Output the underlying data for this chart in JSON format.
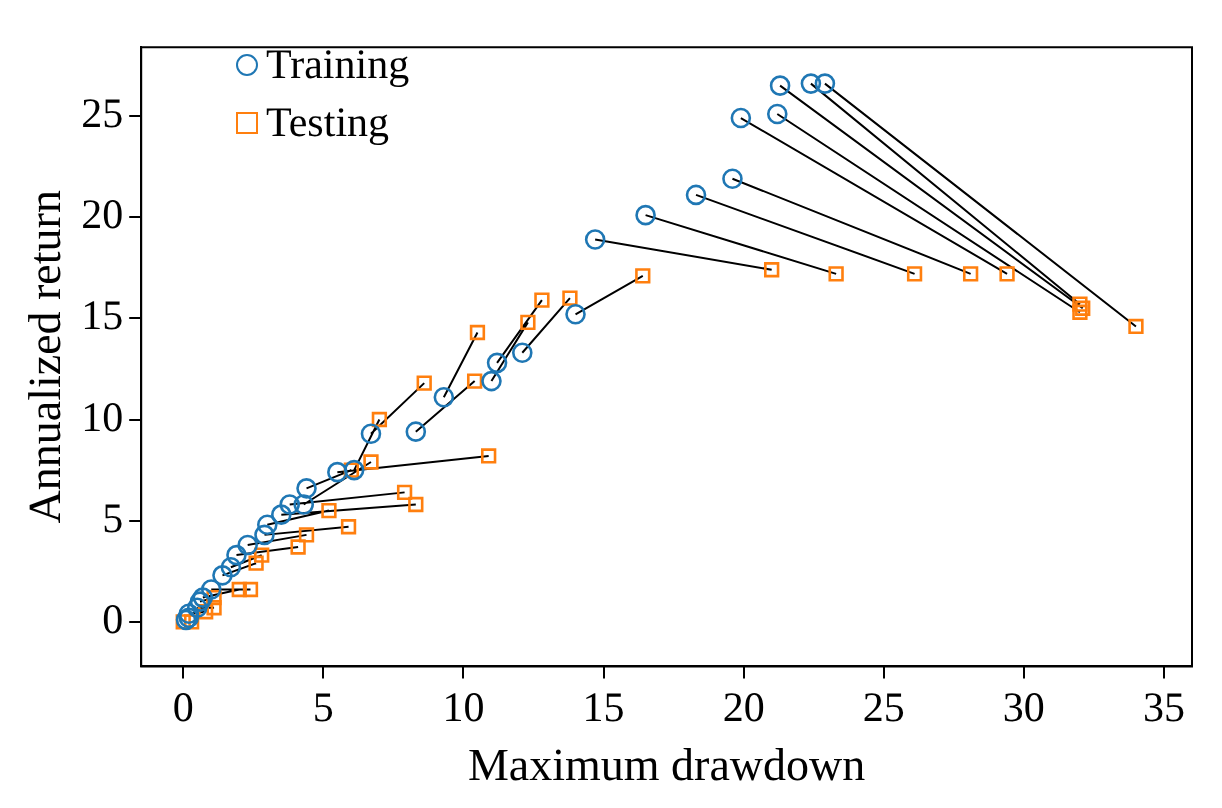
{
  "chart_data": {
    "type": "scatter",
    "xlabel": "Maximum drawdown",
    "ylabel": "Annualized return",
    "xlim": [
      -1.5,
      36
    ],
    "ylim": [
      -2.2,
      28.4
    ],
    "xticks": [
      0,
      5,
      10,
      15,
      20,
      25,
      30,
      35
    ],
    "yticks": [
      0,
      5,
      10,
      15,
      20,
      25
    ],
    "grid": false,
    "legend": "top left",
    "series": [
      {
        "name": "Training",
        "type": "scatter",
        "marker": "circle",
        "color": "#1f77b4",
        "x": [
          22.9,
          22.4,
          21.3,
          21.2,
          19.9,
          19.6,
          18.3,
          16.5,
          14.7,
          14.0,
          12.1,
          11.2,
          11.0,
          9.3,
          8.3,
          6.7,
          6.1,
          5.5,
          4.4,
          4.3,
          3.8,
          3.5,
          3.0,
          2.9,
          2.3,
          1.9,
          1.7,
          1.4,
          1.0,
          0.7,
          0.6,
          0.5,
          0.2,
          0.1,
          0.2
        ],
        "values": [
          26.6,
          26.6,
          26.5,
          25.1,
          24.9,
          21.9,
          21.1,
          20.1,
          18.9,
          15.2,
          13.3,
          12.8,
          11.9,
          11.1,
          9.4,
          9.3,
          7.5,
          7.4,
          6.6,
          5.8,
          5.8,
          5.3,
          4.8,
          4.3,
          3.8,
          3.3,
          2.7,
          2.3,
          1.6,
          1.2,
          1.0,
          0.7,
          0.4,
          0.1,
          0.2
        ]
      },
      {
        "name": "Testing",
        "type": "scatter",
        "marker": "square",
        "color": "#ff7f0e",
        "x": [
          34.0,
          32.0,
          32.1,
          32.0,
          29.4,
          28.1,
          26.1,
          23.3,
          21.0,
          16.4,
          13.8,
          12.8,
          12.3,
          10.5,
          10.4,
          8.6,
          7.0,
          10.9,
          6.0,
          6.7,
          7.9,
          8.3,
          5.2,
          5.9,
          4.4,
          4.1,
          2.8,
          2.6,
          2.4,
          2.0,
          1.1,
          1.1,
          0.8,
          0.0,
          0.3
        ],
        "values": [
          14.6,
          15.7,
          15.5,
          15.3,
          17.2,
          17.2,
          17.2,
          17.2,
          17.4,
          17.1,
          16.0,
          15.9,
          14.8,
          14.3,
          11.9,
          11.8,
          10.0,
          8.2,
          7.5,
          7.9,
          6.4,
          5.8,
          5.5,
          4.7,
          4.3,
          3.7,
          3.3,
          2.9,
          1.6,
          1.6,
          0.7,
          1.2,
          0.5,
          0.0,
          0.0
        ]
      },
      {
        "type": "line",
        "marker": "none",
        "line_style": "solid",
        "color": "#000000",
        "x": [
          22.9,
          34.0,
          null,
          22.4,
          32.0,
          null,
          21.3,
          32.1,
          null,
          21.2,
          32.0,
          null,
          19.9,
          29.4,
          null,
          19.6,
          28.1,
          null,
          18.3,
          26.1,
          null,
          16.5,
          23.3,
          null,
          14.7,
          21.0,
          null,
          14.0,
          16.4,
          null,
          12.1,
          13.8,
          null,
          11.2,
          12.8,
          null,
          11.0,
          12.3,
          null,
          9.3,
          10.5,
          null,
          8.3,
          10.4,
          null,
          6.7,
          8.6,
          null,
          6.1,
          7.0,
          null,
          5.5,
          10.9,
          null,
          4.4,
          6.0,
          null,
          4.3,
          6.7,
          null,
          3.8,
          7.9,
          null,
          3.5,
          8.3,
          null,
          3.0,
          5.2,
          null,
          2.9,
          5.9,
          null,
          2.3,
          4.4,
          null,
          1.9,
          4.1,
          null,
          1.7,
          2.8,
          null,
          1.4,
          2.6,
          null,
          1.0,
          2.4,
          null,
          0.7,
          2.0,
          null,
          0.5,
          1.1,
          null,
          0.6,
          1.1,
          null,
          0.2,
          0.8
        ],
        "values": [
          26.6,
          14.6,
          null,
          26.6,
          15.7,
          null,
          26.5,
          15.5,
          null,
          25.1,
          15.3,
          null,
          24.9,
          17.2,
          null,
          21.9,
          17.2,
          null,
          21.1,
          17.2,
          null,
          20.1,
          17.2,
          null,
          18.9,
          17.4,
          null,
          15.2,
          17.1,
          null,
          13.3,
          16.0,
          null,
          12.8,
          15.9,
          null,
          11.9,
          14.8,
          null,
          11.1,
          14.3,
          null,
          9.4,
          11.9,
          null,
          9.3,
          11.8,
          null,
          7.5,
          10.0,
          null,
          7.4,
          8.2,
          null,
          6.6,
          7.5,
          null,
          5.8,
          7.9,
          null,
          5.8,
          6.4,
          null,
          5.3,
          5.8,
          null,
          4.8,
          5.5,
          null,
          4.3,
          4.7,
          null,
          3.8,
          4.3,
          null,
          3.3,
          3.7,
          null,
          2.7,
          3.3,
          null,
          2.3,
          2.9,
          null,
          1.6,
          1.6,
          null,
          1.2,
          1.6,
          null,
          0.7,
          0.7,
          null,
          1.0,
          1.2,
          null,
          0.4,
          0.5
        ]
      }
    ]
  }
}
